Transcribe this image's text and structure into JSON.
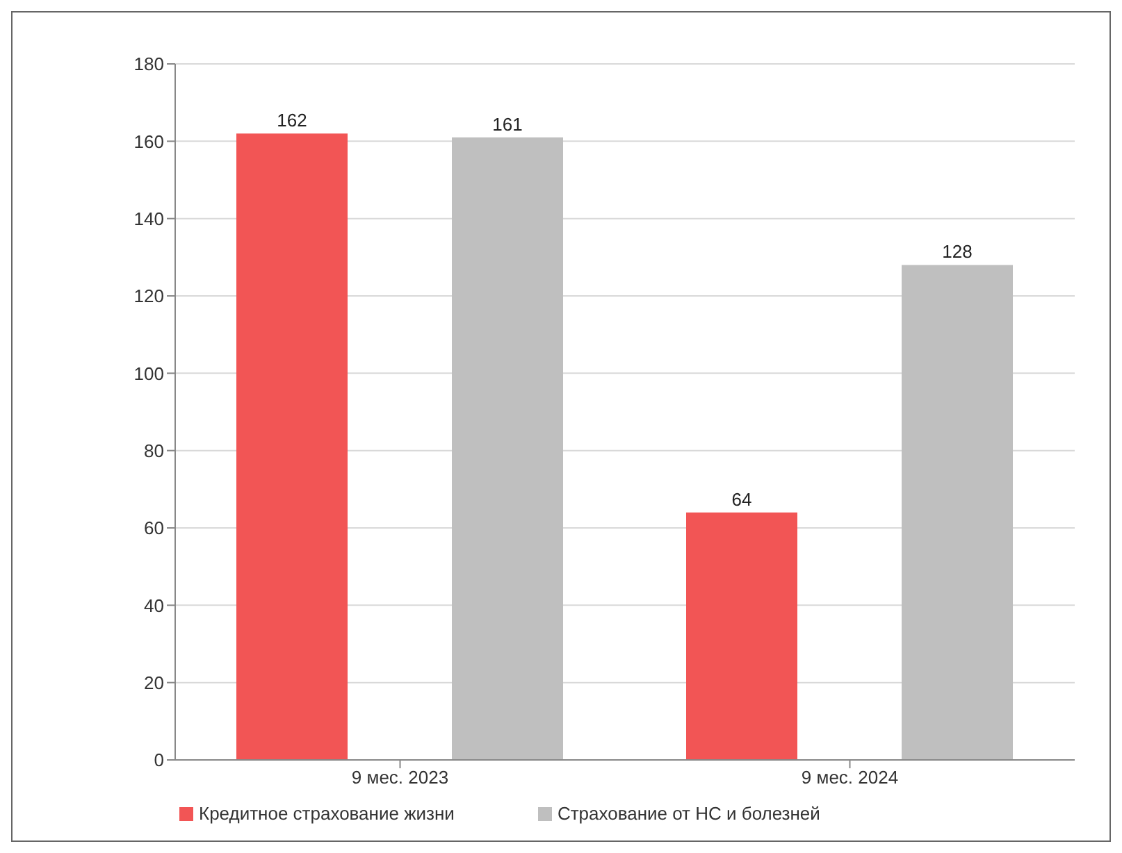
{
  "chart_data": {
    "type": "bar",
    "categories": [
      "9 мес. 2023",
      "9 мес. 2024"
    ],
    "series": [
      {
        "name": "Кредитное страхование жизни",
        "color": "#f25555",
        "values": [
          162,
          64
        ]
      },
      {
        "name": "Страхование от НС и болезней",
        "color": "#bfbfbf",
        "values": [
          161,
          128
        ]
      }
    ],
    "ylim": [
      0,
      180
    ],
    "yticks": [
      0,
      20,
      40,
      60,
      80,
      100,
      120,
      140,
      160,
      180
    ],
    "grid": "y",
    "legend": "bottom",
    "data_labels": true
  }
}
